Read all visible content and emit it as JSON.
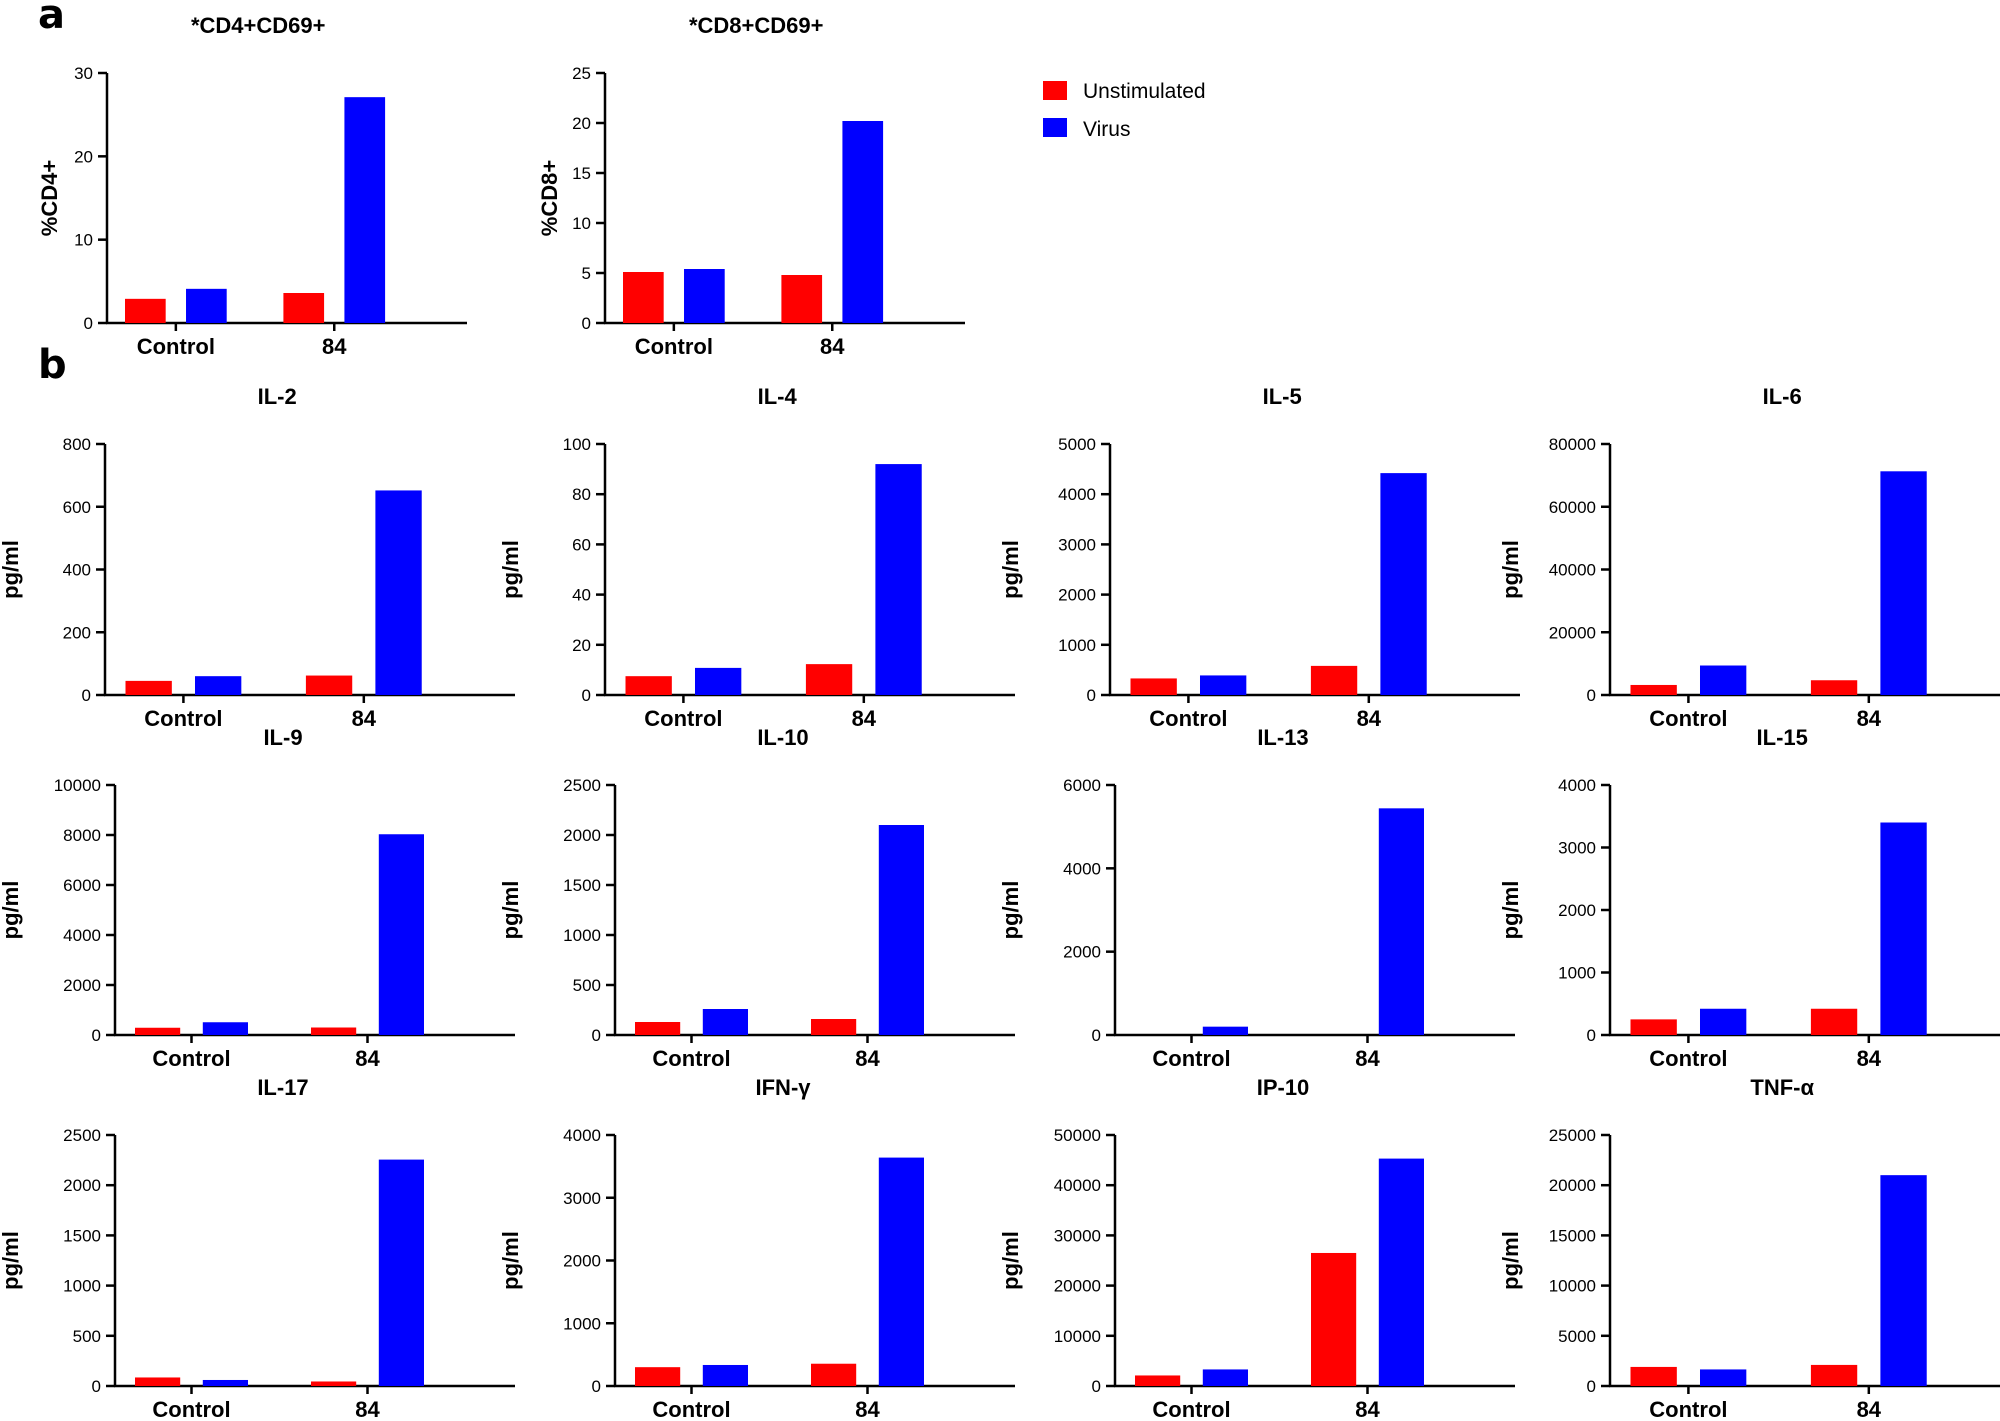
{
  "figure": {
    "panel_labels": [
      "a",
      "b"
    ],
    "legend": [
      {
        "label": "Unstimulated",
        "color": "#ff0000"
      },
      {
        "label": "Virus",
        "color": "#0000ff"
      }
    ]
  },
  "chart_data": [
    {
      "type": "bar",
      "title": "*CD4+CD69+",
      "ylabel": "%CD4+",
      "categories": [
        "Control",
        "84"
      ],
      "series": [
        {
          "name": "Unstimulated",
          "values": [
            2.9,
            3.6
          ]
        },
        {
          "name": "Virus",
          "values": [
            4.1,
            27.1
          ]
        }
      ],
      "ylim": [
        0,
        30
      ],
      "yticks": [
        0,
        10,
        20,
        30
      ]
    },
    {
      "type": "bar",
      "title": "*CD8+CD69+",
      "ylabel": "%CD8+",
      "categories": [
        "Control",
        "84"
      ],
      "series": [
        {
          "name": "Unstimulated",
          "values": [
            5.1,
            4.8
          ]
        },
        {
          "name": "Virus",
          "values": [
            5.4,
            20.2
          ]
        }
      ],
      "ylim": [
        0,
        25
      ],
      "yticks": [
        0,
        5,
        10,
        15,
        20,
        25
      ]
    },
    {
      "type": "bar",
      "title": "IL-2",
      "ylabel": "pg/ml",
      "categories": [
        "Control",
        "84"
      ],
      "series": [
        {
          "name": "Unstimulated",
          "values": [
            45,
            62
          ]
        },
        {
          "name": "Virus",
          "values": [
            60,
            652
          ]
        }
      ],
      "ylim": [
        0,
        800
      ],
      "yticks": [
        0,
        200,
        400,
        600,
        800
      ]
    },
    {
      "type": "bar",
      "title": "IL-4",
      "ylabel": "pg/ml",
      "categories": [
        "Control",
        "84"
      ],
      "series": [
        {
          "name": "Unstimulated",
          "values": [
            7.5,
            12.3
          ]
        },
        {
          "name": "Virus",
          "values": [
            10.8,
            92
          ]
        }
      ],
      "ylim": [
        0,
        100
      ],
      "yticks": [
        0,
        20,
        40,
        60,
        80,
        100
      ]
    },
    {
      "type": "bar",
      "title": "IL-5",
      "ylabel": "pg/ml",
      "categories": [
        "Control",
        "84"
      ],
      "series": [
        {
          "name": "Unstimulated",
          "values": [
            330,
            580
          ]
        },
        {
          "name": "Virus",
          "values": [
            390,
            4420
          ]
        }
      ],
      "ylim": [
        0,
        5000
      ],
      "yticks": [
        0,
        1000,
        2000,
        3000,
        4000,
        5000
      ]
    },
    {
      "type": "bar",
      "title": "IL-6",
      "ylabel": "pg/ml",
      "categories": [
        "Control",
        "84"
      ],
      "series": [
        {
          "name": "Unstimulated",
          "values": [
            3200,
            4700
          ]
        },
        {
          "name": "Virus",
          "values": [
            9400,
            71300
          ]
        }
      ],
      "ylim": [
        0,
        80000
      ],
      "yticks": [
        0,
        20000,
        40000,
        60000,
        80000
      ]
    },
    {
      "type": "bar",
      "title": "IL-9",
      "ylabel": "pg/ml",
      "categories": [
        "Control",
        "84"
      ],
      "series": [
        {
          "name": "Unstimulated",
          "values": [
            290,
            300
          ]
        },
        {
          "name": "Virus",
          "values": [
            510,
            8030
          ]
        }
      ],
      "ylim": [
        0,
        10000
      ],
      "yticks": [
        0,
        2000,
        4000,
        6000,
        8000,
        10000
      ]
    },
    {
      "type": "bar",
      "title": "IL-10",
      "ylabel": "pg/ml",
      "categories": [
        "Control",
        "84"
      ],
      "series": [
        {
          "name": "Unstimulated",
          "values": [
            130,
            160
          ]
        },
        {
          "name": "Virus",
          "values": [
            260,
            2100
          ]
        }
      ],
      "ylim": [
        0,
        2500
      ],
      "yticks": [
        0,
        500,
        1000,
        1500,
        2000,
        2500
      ]
    },
    {
      "type": "bar",
      "title": "IL-13",
      "ylabel": "pg/ml",
      "categories": [
        "Control",
        "84"
      ],
      "series": [
        {
          "name": "Unstimulated",
          "values": [
            0,
            0
          ]
        },
        {
          "name": "Virus",
          "values": [
            200,
            5440
          ]
        }
      ],
      "ylim": [
        0,
        6000
      ],
      "yticks": [
        0,
        2000,
        4000,
        6000
      ]
    },
    {
      "type": "bar",
      "title": "IL-15",
      "ylabel": "pg/ml",
      "categories": [
        "Control",
        "84"
      ],
      "series": [
        {
          "name": "Unstimulated",
          "values": [
            250,
            420
          ]
        },
        {
          "name": "Virus",
          "values": [
            420,
            3400
          ]
        }
      ],
      "ylim": [
        0,
        4000
      ],
      "yticks": [
        0,
        1000,
        2000,
        3000,
        4000
      ]
    },
    {
      "type": "bar",
      "title": "IL-17",
      "ylabel": "pg/ml",
      "categories": [
        "Control",
        "84"
      ],
      "series": [
        {
          "name": "Unstimulated",
          "values": [
            85,
            45
          ]
        },
        {
          "name": "Virus",
          "values": [
            60,
            2255
          ]
        }
      ],
      "ylim": [
        0,
        2500
      ],
      "yticks": [
        0,
        500,
        1000,
        1500,
        2000,
        2500
      ]
    },
    {
      "type": "bar",
      "title": "IFN-γ",
      "ylabel": "pg/ml",
      "categories": [
        "Control",
        "84"
      ],
      "series": [
        {
          "name": "Unstimulated",
          "values": [
            300,
            355
          ]
        },
        {
          "name": "Virus",
          "values": [
            335,
            3640
          ]
        }
      ],
      "ylim": [
        0,
        4000
      ],
      "yticks": [
        0,
        1000,
        2000,
        3000,
        4000
      ]
    },
    {
      "type": "bar",
      "title": "IP-10",
      "ylabel": "pg/ml",
      "categories": [
        "Control",
        "84"
      ],
      "series": [
        {
          "name": "Unstimulated",
          "values": [
            2100,
            26500
          ]
        },
        {
          "name": "Virus",
          "values": [
            3300,
            45300
          ]
        }
      ],
      "ylim": [
        0,
        50000
      ],
      "yticks": [
        0,
        10000,
        20000,
        30000,
        40000,
        50000
      ]
    },
    {
      "type": "bar",
      "title": "TNF-α",
      "ylabel": "pg/ml",
      "categories": [
        "Control",
        "84"
      ],
      "series": [
        {
          "name": "Unstimulated",
          "values": [
            1900,
            2100
          ]
        },
        {
          "name": "Virus",
          "values": [
            1650,
            21000
          ]
        }
      ],
      "ylim": [
        0,
        25000
      ],
      "yticks": [
        0,
        5000,
        10000,
        15000,
        20000,
        25000
      ]
    }
  ]
}
